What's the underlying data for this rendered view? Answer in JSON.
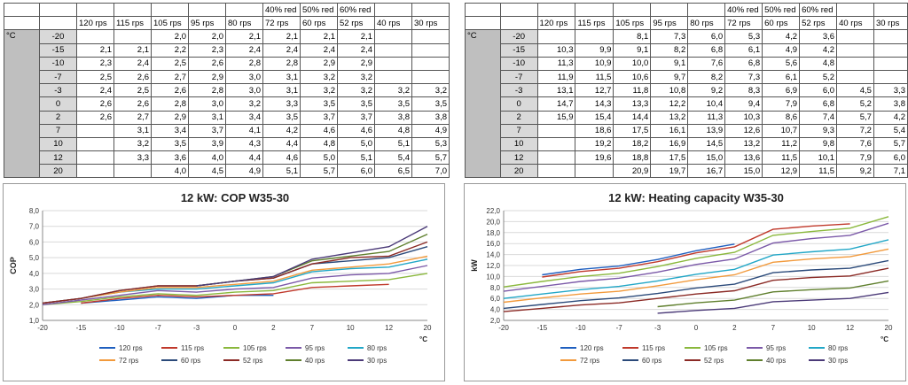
{
  "tables": [
    {
      "unit": "°C",
      "headers": [
        "120 rps",
        "115 rps",
        "105 rps",
        "95 rps",
        "80 rps",
        "72 rps",
        "60 rps",
        "52 rps",
        "40 rps",
        "30 rps"
      ],
      "reductions": [
        "",
        "",
        "",
        "",
        "",
        "40% red",
        "50% red",
        "60% red",
        "",
        ""
      ],
      "rows": [
        {
          "t": "-20",
          "v": [
            "",
            "",
            "2,0",
            "2,0",
            "2,1",
            "2,1",
            "2,1",
            "2,1",
            "",
            ""
          ]
        },
        {
          "t": "-15",
          "v": [
            "2,1",
            "2,1",
            "2,2",
            "2,3",
            "2,4",
            "2,4",
            "2,4",
            "2,4",
            "",
            ""
          ]
        },
        {
          "t": "-10",
          "v": [
            "2,3",
            "2,4",
            "2,5",
            "2,6",
            "2,8",
            "2,8",
            "2,9",
            "2,9",
            "",
            ""
          ]
        },
        {
          "t": "-7",
          "v": [
            "2,5",
            "2,6",
            "2,7",
            "2,9",
            "3,0",
            "3,1",
            "3,2",
            "3,2",
            "",
            ""
          ]
        },
        {
          "t": "-3",
          "v": [
            "2,4",
            "2,5",
            "2,6",
            "2,8",
            "3,0",
            "3,1",
            "3,2",
            "3,2",
            "3,2",
            "3,2"
          ]
        },
        {
          "t": "0",
          "v": [
            "2,6",
            "2,6",
            "2,8",
            "3,0",
            "3,2",
            "3,3",
            "3,5",
            "3,5",
            "3,5",
            "3,5"
          ]
        },
        {
          "t": "2",
          "v": [
            "2,6",
            "2,7",
            "2,9",
            "3,1",
            "3,4",
            "3,5",
            "3,7",
            "3,7",
            "3,8",
            "3,8"
          ]
        },
        {
          "t": "7",
          "v": [
            "",
            "3,1",
            "3,4",
            "3,7",
            "4,1",
            "4,2",
            "4,6",
            "4,6",
            "4,8",
            "4,9"
          ]
        },
        {
          "t": "10",
          "v": [
            "",
            "3,2",
            "3,5",
            "3,9",
            "4,3",
            "4,4",
            "4,8",
            "5,0",
            "5,1",
            "5,3"
          ]
        },
        {
          "t": "12",
          "v": [
            "",
            "3,3",
            "3,6",
            "4,0",
            "4,4",
            "4,6",
            "5,0",
            "5,1",
            "5,4",
            "5,7"
          ]
        },
        {
          "t": "20",
          "v": [
            "",
            "",
            "4,0",
            "4,5",
            "4,9",
            "5,1",
            "5,7",
            "6,0",
            "6,5",
            "7,0"
          ]
        }
      ]
    },
    {
      "unit": "°C",
      "headers": [
        "120 rps",
        "115 rps",
        "105 rps",
        "95 rps",
        "80 rps",
        "72 rps",
        "60 rps",
        "52 rps",
        "40 rps",
        "30 rps"
      ],
      "reductions": [
        "",
        "",
        "",
        "",
        "",
        "40% red",
        "50% red",
        "60% red",
        "",
        ""
      ],
      "rows": [
        {
          "t": "-20",
          "v": [
            "",
            "",
            "8,1",
            "7,3",
            "6,0",
            "5,3",
            "4,2",
            "3,6",
            "",
            ""
          ]
        },
        {
          "t": "-15",
          "v": [
            "10,3",
            "9,9",
            "9,1",
            "8,2",
            "6,8",
            "6,1",
            "4,9",
            "4,2",
            "",
            ""
          ]
        },
        {
          "t": "-10",
          "v": [
            "11,3",
            "10,9",
            "10,0",
            "9,1",
            "7,6",
            "6,8",
            "5,6",
            "4,8",
            "",
            ""
          ]
        },
        {
          "t": "-7",
          "v": [
            "11,9",
            "11,5",
            "10,6",
            "9,7",
            "8,2",
            "7,3",
            "6,1",
            "5,2",
            "",
            ""
          ]
        },
        {
          "t": "-3",
          "v": [
            "13,1",
            "12,7",
            "11,8",
            "10,8",
            "9,2",
            "8,3",
            "6,9",
            "6,0",
            "4,5",
            "3,3"
          ]
        },
        {
          "t": "0",
          "v": [
            "14,7",
            "14,3",
            "13,3",
            "12,2",
            "10,4",
            "9,4",
            "7,9",
            "6,8",
            "5,2",
            "3,8"
          ]
        },
        {
          "t": "2",
          "v": [
            "15,9",
            "15,4",
            "14,4",
            "13,2",
            "11,3",
            "10,3",
            "8,6",
            "7,4",
            "5,7",
            "4,2"
          ]
        },
        {
          "t": "7",
          "v": [
            "",
            "18,6",
            "17,5",
            "16,1",
            "13,9",
            "12,6",
            "10,7",
            "9,3",
            "7,2",
            "5,4"
          ]
        },
        {
          "t": "10",
          "v": [
            "",
            "19,2",
            "18,2",
            "16,9",
            "14,5",
            "13,2",
            "11,2",
            "9,8",
            "7,6",
            "5,7"
          ]
        },
        {
          "t": "12",
          "v": [
            "",
            "19,6",
            "18,8",
            "17,5",
            "15,0",
            "13,6",
            "11,5",
            "10,1",
            "7,9",
            "6,0"
          ]
        },
        {
          "t": "20",
          "v": [
            "",
            "",
            "20,9",
            "19,7",
            "16,7",
            "15,0",
            "12,9",
            "11,5",
            "9,2",
            "7,1"
          ]
        }
      ]
    }
  ],
  "chart_data": [
    {
      "type": "line",
      "title": "12 kW: COP W35-30",
      "ylabel": "COP",
      "xlabel": "°C",
      "x": [
        -20,
        -15,
        -10,
        -7,
        -3,
        0,
        2,
        7,
        10,
        12,
        20
      ],
      "x_ticks": [
        -20,
        -15,
        -10,
        -7,
        -3,
        0,
        2,
        7,
        10,
        12,
        20
      ],
      "ylim": [
        1.0,
        8.0
      ],
      "y_ticks": [
        "1,0",
        "2,0",
        "3,0",
        "4,0",
        "5,0",
        "6,0",
        "7,0",
        "8,0"
      ],
      "series": [
        {
          "name": "120 rps",
          "color": "#1f5fbf",
          "values": [
            null,
            2.1,
            2.3,
            2.5,
            2.4,
            2.6,
            2.6,
            null,
            null,
            null,
            null
          ]
        },
        {
          "name": "115 rps",
          "color": "#c0392b",
          "values": [
            null,
            2.1,
            2.4,
            2.6,
            2.5,
            2.6,
            2.7,
            3.1,
            3.2,
            3.3,
            null
          ]
        },
        {
          "name": "105 rps",
          "color": "#8ab83c",
          "values": [
            2.0,
            2.2,
            2.5,
            2.7,
            2.6,
            2.8,
            2.9,
            3.4,
            3.5,
            3.6,
            4.0
          ]
        },
        {
          "name": "95 rps",
          "color": "#7b59a8",
          "values": [
            2.0,
            2.3,
            2.6,
            2.9,
            2.8,
            3.0,
            3.1,
            3.7,
            3.9,
            4.0,
            4.5
          ]
        },
        {
          "name": "80 rps",
          "color": "#22a7c7",
          "values": [
            2.1,
            2.4,
            2.8,
            3.0,
            3.0,
            3.2,
            3.4,
            4.1,
            4.3,
            4.4,
            4.9
          ]
        },
        {
          "name": "72 rps",
          "color": "#f29a3c",
          "values": [
            2.1,
            2.4,
            2.8,
            3.1,
            3.1,
            3.3,
            3.5,
            4.2,
            4.4,
            4.6,
            5.1
          ]
        },
        {
          "name": "60 rps",
          "color": "#2b4a7a",
          "values": [
            2.1,
            2.4,
            2.9,
            3.2,
            3.2,
            3.5,
            3.7,
            4.6,
            4.8,
            5.0,
            5.7
          ]
        },
        {
          "name": "52 rps",
          "color": "#8b2a25",
          "values": [
            2.1,
            2.4,
            2.9,
            3.2,
            3.2,
            3.5,
            3.7,
            4.6,
            5.0,
            5.1,
            6.0
          ]
        },
        {
          "name": "40 rps",
          "color": "#5f7f2d",
          "values": [
            null,
            null,
            null,
            null,
            3.2,
            3.5,
            3.8,
            4.8,
            5.1,
            5.4,
            6.5
          ]
        },
        {
          "name": "30 rps",
          "color": "#4b3a78",
          "values": [
            null,
            null,
            null,
            null,
            3.2,
            3.5,
            3.8,
            4.9,
            5.3,
            5.7,
            7.0
          ]
        }
      ],
      "legend": "bottom"
    },
    {
      "type": "line",
      "title": "12 kW: Heating capacity W35-30",
      "ylabel": "kW",
      "xlabel": "°C",
      "x": [
        -20,
        -15,
        -10,
        -7,
        -3,
        0,
        2,
        7,
        10,
        12,
        20
      ],
      "x_ticks": [
        -20,
        -15,
        -10,
        -7,
        -3,
        0,
        2,
        7,
        10,
        12,
        20
      ],
      "ylim": [
        2.0,
        22.0
      ],
      "y_ticks": [
        "2,0",
        "4,0",
        "6,0",
        "8,0",
        "10,0",
        "12,0",
        "14,0",
        "16,0",
        "18,0",
        "20,0",
        "22,0"
      ],
      "series": [
        {
          "name": "120 rps",
          "color": "#1f5fbf",
          "values": [
            null,
            10.3,
            11.3,
            11.9,
            13.1,
            14.7,
            15.9,
            null,
            null,
            null,
            null
          ]
        },
        {
          "name": "115 rps",
          "color": "#c0392b",
          "values": [
            null,
            9.9,
            10.9,
            11.5,
            12.7,
            14.3,
            15.4,
            18.6,
            19.2,
            19.6,
            null
          ]
        },
        {
          "name": "105 rps",
          "color": "#8ab83c",
          "values": [
            8.1,
            9.1,
            10.0,
            10.6,
            11.8,
            13.3,
            14.4,
            17.5,
            18.2,
            18.8,
            20.9
          ]
        },
        {
          "name": "95 rps",
          "color": "#7b59a8",
          "values": [
            7.3,
            8.2,
            9.1,
            9.7,
            10.8,
            12.2,
            13.2,
            16.1,
            16.9,
            17.5,
            19.7
          ]
        },
        {
          "name": "80 rps",
          "color": "#22a7c7",
          "values": [
            6.0,
            6.8,
            7.6,
            8.2,
            9.2,
            10.4,
            11.3,
            13.9,
            14.5,
            15.0,
            16.7
          ]
        },
        {
          "name": "72 rps",
          "color": "#f29a3c",
          "values": [
            5.3,
            6.1,
            6.8,
            7.3,
            8.3,
            9.4,
            10.3,
            12.6,
            13.2,
            13.6,
            15.0
          ]
        },
        {
          "name": "60 rps",
          "color": "#2b4a7a",
          "values": [
            4.2,
            4.9,
            5.6,
            6.1,
            6.9,
            7.9,
            8.6,
            10.7,
            11.2,
            11.5,
            12.9
          ]
        },
        {
          "name": "52 rps",
          "color": "#8b2a25",
          "values": [
            3.6,
            4.2,
            4.8,
            5.2,
            6.0,
            6.8,
            7.4,
            9.3,
            9.8,
            10.1,
            11.5
          ]
        },
        {
          "name": "40 rps",
          "color": "#5f7f2d",
          "values": [
            null,
            null,
            null,
            null,
            4.5,
            5.2,
            5.7,
            7.2,
            7.6,
            7.9,
            9.2
          ]
        },
        {
          "name": "30 rps",
          "color": "#4b3a78",
          "values": [
            null,
            null,
            null,
            null,
            3.3,
            3.8,
            4.2,
            5.4,
            5.7,
            6.0,
            7.1
          ]
        }
      ],
      "legend": "bottom"
    }
  ]
}
